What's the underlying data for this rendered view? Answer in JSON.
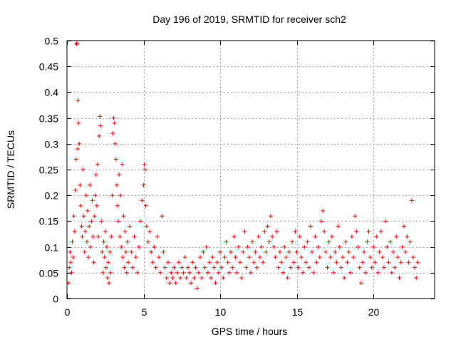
{
  "chart_data": {
    "type": "scatter",
    "title": "Day 196 of 2019, SRMTID for receiver sch2",
    "xlabel": "GPS time / hours",
    "ylabel": "SRMTID / TECUs",
    "xlim": [
      0,
      24
    ],
    "ylim": [
      0,
      0.5
    ],
    "x_ticks": [
      0,
      5,
      10,
      15,
      20
    ],
    "x_tick_labels": [
      "0",
      "5",
      "10",
      "15",
      "20"
    ],
    "y_ticks": [
      0,
      0.05,
      0.1,
      0.15,
      0.2,
      0.25,
      0.3,
      0.35,
      0.4,
      0.45,
      0.5
    ],
    "y_tick_labels": [
      "0",
      "0.05",
      "0.1",
      "0.15",
      "0.2",
      "0.25",
      "0.3",
      "0.35",
      "0.4",
      "0.45",
      "0.5"
    ],
    "grid": true,
    "marker": "+",
    "color": "#ff0000",
    "series": [
      {
        "name": "SRMTID",
        "points": [
          [
            0.1,
            0.03
          ],
          [
            0.15,
            0.06
          ],
          [
            0.2,
            0.09
          ],
          [
            0.25,
            0.07
          ],
          [
            0.3,
            0.05
          ],
          [
            0.35,
            0.11
          ],
          [
            0.4,
            0.08
          ],
          [
            0.45,
            0.16
          ],
          [
            0.5,
            0.13
          ],
          [
            0.55,
            0.21
          ],
          [
            0.6,
            0.27
          ],
          [
            0.62,
            0.493
          ],
          [
            0.65,
            0.495
          ],
          [
            0.7,
            0.29
          ],
          [
            0.72,
            0.384
          ],
          [
            0.75,
            0.34
          ],
          [
            0.8,
            0.3
          ],
          [
            0.85,
            0.22
          ],
          [
            0.9,
            0.18
          ],
          [
            0.95,
            0.14
          ],
          [
            1.0,
            0.12
          ],
          [
            1.05,
            0.25
          ],
          [
            1.1,
            0.16
          ],
          [
            1.15,
            0.09
          ],
          [
            1.2,
            0.13
          ],
          [
            1.25,
            0.2
          ],
          [
            1.3,
            0.11
          ],
          [
            1.35,
            0.17
          ],
          [
            1.4,
            0.08
          ],
          [
            1.45,
            0.14
          ],
          [
            1.5,
            0.22
          ],
          [
            1.55,
            0.1
          ],
          [
            1.6,
            0.15
          ],
          [
            1.65,
            0.19
          ],
          [
            1.7,
            0.12
          ],
          [
            1.75,
            0.07
          ],
          [
            1.8,
            0.16
          ],
          [
            1.85,
            0.2
          ],
          [
            1.9,
            0.24
          ],
          [
            1.95,
            0.18
          ],
          [
            2.0,
            0.26
          ],
          [
            2.05,
            0.12
          ],
          [
            2.1,
            0.315
          ],
          [
            2.15,
            0.353
          ],
          [
            2.2,
            0.335
          ],
          [
            2.25,
            0.15
          ],
          [
            2.3,
            0.09
          ],
          [
            2.35,
            0.05
          ],
          [
            2.4,
            0.11
          ],
          [
            2.45,
            0.08
          ],
          [
            2.5,
            0.13
          ],
          [
            2.55,
            0.06
          ],
          [
            2.6,
            0.1
          ],
          [
            2.65,
            0.04
          ],
          [
            2.7,
            0.07
          ],
          [
            2.75,
            0.03
          ],
          [
            2.8,
            0.09
          ],
          [
            2.85,
            0.05
          ],
          [
            2.9,
            0.12
          ],
          [
            2.95,
            0.2
          ],
          [
            3.0,
            0.32
          ],
          [
            3.05,
            0.35
          ],
          [
            3.1,
            0.34
          ],
          [
            3.15,
            0.3
          ],
          [
            3.2,
            0.27
          ],
          [
            3.25,
            0.22
          ],
          [
            3.3,
            0.18
          ],
          [
            3.35,
            0.15
          ],
          [
            3.4,
            0.24
          ],
          [
            3.45,
            0.12
          ],
          [
            3.5,
            0.2
          ],
          [
            3.55,
            0.1
          ],
          [
            3.6,
            0.26
          ],
          [
            3.65,
            0.08
          ],
          [
            3.7,
            0.16
          ],
          [
            3.75,
            0.06
          ],
          [
            3.8,
            0.13
          ],
          [
            3.85,
            0.09
          ],
          [
            3.9,
            0.05
          ],
          [
            3.95,
            0.11
          ],
          [
            4.0,
            0.07
          ],
          [
            4.1,
            0.14
          ],
          [
            4.2,
            0.09
          ],
          [
            4.3,
            0.06
          ],
          [
            4.4,
            0.12
          ],
          [
            4.5,
            0.08
          ],
          [
            4.6,
            0.05
          ],
          [
            4.7,
            0.1
          ],
          [
            4.8,
            0.15
          ],
          [
            4.9,
            0.19
          ],
          [
            5.0,
            0.22
          ],
          [
            5.05,
            0.26
          ],
          [
            5.1,
            0.25
          ],
          [
            5.15,
            0.18
          ],
          [
            5.2,
            0.14
          ],
          [
            5.3,
            0.11
          ],
          [
            5.4,
            0.13
          ],
          [
            5.5,
            0.09
          ],
          [
            5.6,
            0.07
          ],
          [
            5.7,
            0.1
          ],
          [
            5.8,
            0.06
          ],
          [
            5.9,
            0.12
          ],
          [
            6.0,
            0.08
          ],
          [
            6.1,
            0.05
          ],
          [
            6.2,
            0.16
          ],
          [
            6.3,
            0.09
          ],
          [
            6.4,
            0.06
          ],
          [
            6.5,
            0.04
          ],
          [
            6.6,
            0.07
          ],
          [
            6.7,
            0.03
          ],
          [
            6.8,
            0.05
          ],
          [
            6.9,
            0.04
          ],
          [
            7.0,
            0.06
          ],
          [
            7.1,
            0.03
          ],
          [
            7.2,
            0.05
          ],
          [
            7.3,
            0.07
          ],
          [
            7.4,
            0.04
          ],
          [
            7.5,
            0.06
          ],
          [
            7.6,
            0.05
          ],
          [
            7.7,
            0.08
          ],
          [
            7.8,
            0.04
          ],
          [
            7.9,
            0.06
          ],
          [
            8.0,
            0.05
          ],
          [
            8.1,
            0.03
          ],
          [
            8.2,
            0.07
          ],
          [
            8.3,
            0.04
          ],
          [
            8.4,
            0.06
          ],
          [
            8.5,
            0.02
          ],
          [
            8.6,
            0.05
          ],
          [
            8.7,
            0.08
          ],
          [
            8.8,
            0.04
          ],
          [
            8.9,
            0.09
          ],
          [
            9.0,
            0.06
          ],
          [
            9.1,
            0.1
          ],
          [
            9.2,
            0.05
          ],
          [
            9.3,
            0.07
          ],
          [
            9.4,
            0.04
          ],
          [
            9.5,
            0.08
          ],
          [
            9.6,
            0.06
          ],
          [
            9.7,
            0.03
          ],
          [
            9.8,
            0.07
          ],
          [
            9.9,
            0.05
          ],
          [
            10.0,
            0.09
          ],
          [
            10.1,
            0.06
          ],
          [
            10.2,
            0.04
          ],
          [
            10.3,
            0.08
          ],
          [
            10.4,
            0.11
          ],
          [
            10.5,
            0.07
          ],
          [
            10.6,
            0.05
          ],
          [
            10.7,
            0.09
          ],
          [
            10.8,
            0.06
          ],
          [
            10.9,
            0.12
          ],
          [
            11.0,
            0.08
          ],
          [
            11.1,
            0.05
          ],
          [
            11.2,
            0.1
          ],
          [
            11.3,
            0.07
          ],
          [
            11.4,
            0.04
          ],
          [
            11.5,
            0.09
          ],
          [
            11.6,
            0.13
          ],
          [
            11.7,
            0.06
          ],
          [
            11.8,
            0.1
          ],
          [
            11.9,
            0.08
          ],
          [
            12.0,
            0.05
          ],
          [
            12.1,
            0.11
          ],
          [
            12.2,
            0.07
          ],
          [
            12.3,
            0.09
          ],
          [
            12.4,
            0.06
          ],
          [
            12.5,
            0.12
          ],
          [
            12.6,
            0.08
          ],
          [
            12.7,
            0.1
          ],
          [
            12.8,
            0.07
          ],
          [
            12.9,
            0.13
          ],
          [
            13.0,
            0.09
          ],
          [
            13.1,
            0.14
          ],
          [
            13.2,
            0.11
          ],
          [
            13.3,
            0.16
          ],
          [
            13.4,
            0.12
          ],
          [
            13.5,
            0.1
          ],
          [
            13.6,
            0.08
          ],
          [
            13.7,
            0.13
          ],
          [
            13.8,
            0.06
          ],
          [
            13.9,
            0.09
          ],
          [
            14.0,
            0.07
          ],
          [
            14.1,
            0.05
          ],
          [
            14.2,
            0.1
          ],
          [
            14.3,
            0.08
          ],
          [
            14.4,
            0.04
          ],
          [
            14.5,
            0.09
          ],
          [
            14.6,
            0.06
          ],
          [
            14.7,
            0.11
          ],
          [
            14.8,
            0.07
          ],
          [
            14.9,
            0.13
          ],
          [
            15.0,
            0.09
          ],
          [
            15.1,
            0.06
          ],
          [
            15.2,
            0.12
          ],
          [
            15.3,
            0.08
          ],
          [
            15.4,
            0.05
          ],
          [
            15.5,
            0.1
          ],
          [
            15.6,
            0.07
          ],
          [
            15.7,
            0.11
          ],
          [
            15.8,
            0.06
          ],
          [
            15.9,
            0.14
          ],
          [
            16.0,
            0.09
          ],
          [
            16.1,
            0.05
          ],
          [
            16.2,
            0.12
          ],
          [
            16.3,
            0.07
          ],
          [
            16.4,
            0.1
          ],
          [
            16.5,
            0.08
          ],
          [
            16.6,
            0.15
          ],
          [
            16.7,
            0.17
          ],
          [
            16.8,
            0.13
          ],
          [
            16.9,
            0.09
          ],
          [
            17.0,
            0.06
          ],
          [
            17.1,
            0.11
          ],
          [
            17.2,
            0.08
          ],
          [
            17.3,
            0.12
          ],
          [
            17.4,
            0.05
          ],
          [
            17.5,
            0.09
          ],
          [
            17.6,
            0.07
          ],
          [
            17.7,
            0.14
          ],
          [
            17.8,
            0.1
          ],
          [
            17.9,
            0.06
          ],
          [
            18.0,
            0.08
          ],
          [
            18.1,
            0.04
          ],
          [
            18.2,
            0.11
          ],
          [
            18.3,
            0.07
          ],
          [
            18.4,
            0.09
          ],
          [
            18.5,
            0.05
          ],
          [
            18.6,
            0.12
          ],
          [
            18.7,
            0.08
          ],
          [
            18.8,
            0.16
          ],
          [
            18.9,
            0.13
          ],
          [
            19.0,
            0.1
          ],
          [
            19.1,
            0.06
          ],
          [
            19.2,
            0.03
          ],
          [
            19.3,
            0.07
          ],
          [
            19.4,
            0.09
          ],
          [
            19.5,
            0.05
          ],
          [
            19.6,
            0.11
          ],
          [
            19.7,
            0.13
          ],
          [
            19.8,
            0.08
          ],
          [
            19.9,
            0.06
          ],
          [
            20.0,
            0.1
          ],
          [
            20.1,
            0.07
          ],
          [
            20.2,
            0.12
          ],
          [
            20.3,
            0.05
          ],
          [
            20.4,
            0.09
          ],
          [
            20.5,
            0.13
          ],
          [
            20.6,
            0.08
          ],
          [
            20.7,
            0.06
          ],
          [
            20.8,
            0.15
          ],
          [
            20.9,
            0.1
          ],
          [
            21.0,
            0.07
          ],
          [
            21.1,
            0.11
          ],
          [
            21.2,
            0.05
          ],
          [
            21.3,
            0.09
          ],
          [
            21.4,
            0.06
          ],
          [
            21.5,
            0.12
          ],
          [
            21.6,
            0.08
          ],
          [
            21.7,
            0.04
          ],
          [
            21.8,
            0.07
          ],
          [
            21.9,
            0.1
          ],
          [
            22.0,
            0.14
          ],
          [
            22.1,
            0.09
          ],
          [
            22.2,
            0.12
          ],
          [
            22.3,
            0.07
          ],
          [
            22.4,
            0.11
          ],
          [
            22.5,
            0.19
          ],
          [
            22.6,
            0.08
          ],
          [
            22.7,
            0.06
          ],
          [
            22.8,
            0.04
          ],
          [
            22.9,
            0.07
          ]
        ]
      }
    ]
  }
}
